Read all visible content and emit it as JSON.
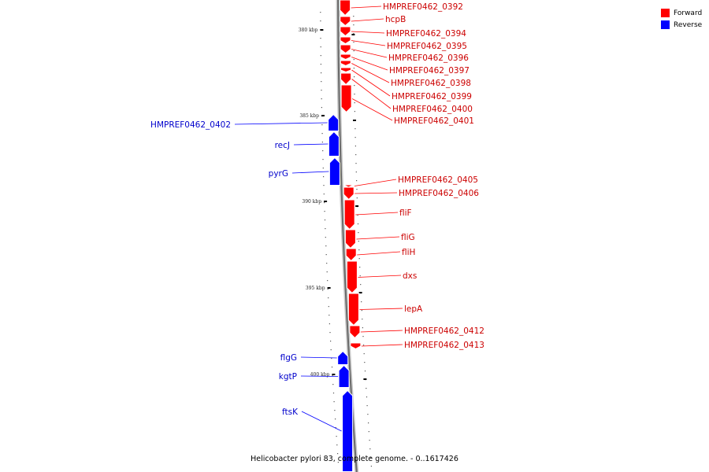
{
  "legend": [
    {
      "label": "Forward",
      "color": "#ff0000"
    },
    {
      "label": "Reverse",
      "color": "#0000ff"
    }
  ],
  "caption": "Helicobacter pylori 83, complete genome. - 0..1617426",
  "ticks": [
    "380 kbp",
    "385 kbp",
    "390 kbp",
    "395 kbp",
    "400 kbp"
  ],
  "genes": [
    {
      "label": "HMPREF0462_0392",
      "strand": "forward"
    },
    {
      "label": "hcpB",
      "strand": "forward"
    },
    {
      "label": "HMPREF0462_0394",
      "strand": "forward"
    },
    {
      "label": "HMPREF0462_0395",
      "strand": "forward"
    },
    {
      "label": "HMPREF0462_0396",
      "strand": "forward"
    },
    {
      "label": "HMPREF0462_0397",
      "strand": "forward"
    },
    {
      "label": "HMPREF0462_0398",
      "strand": "forward"
    },
    {
      "label": "HMPREF0462_0399",
      "strand": "forward"
    },
    {
      "label": "HMPREF0462_0400",
      "strand": "forward"
    },
    {
      "label": "HMPREF0462_0401",
      "strand": "forward"
    },
    {
      "label": "HMPREF0462_0402",
      "strand": "reverse"
    },
    {
      "label": "recJ",
      "strand": "reverse"
    },
    {
      "label": "pyrG",
      "strand": "reverse"
    },
    {
      "label": "HMPREF0462_0405",
      "strand": "forward"
    },
    {
      "label": "HMPREF0462_0406",
      "strand": "forward"
    },
    {
      "label": "fliF",
      "strand": "forward"
    },
    {
      "label": "fliG",
      "strand": "forward"
    },
    {
      "label": "fliH",
      "strand": "forward"
    },
    {
      "label": "dxs",
      "strand": "forward"
    },
    {
      "label": "lepA",
      "strand": "forward"
    },
    {
      "label": "HMPREF0462_0412",
      "strand": "forward"
    },
    {
      "label": "HMPREF0462_0413",
      "strand": "forward"
    },
    {
      "label": "flgG",
      "strand": "reverse"
    },
    {
      "label": "kgtP",
      "strand": "reverse"
    },
    {
      "label": "ftsK",
      "strand": "reverse"
    }
  ]
}
